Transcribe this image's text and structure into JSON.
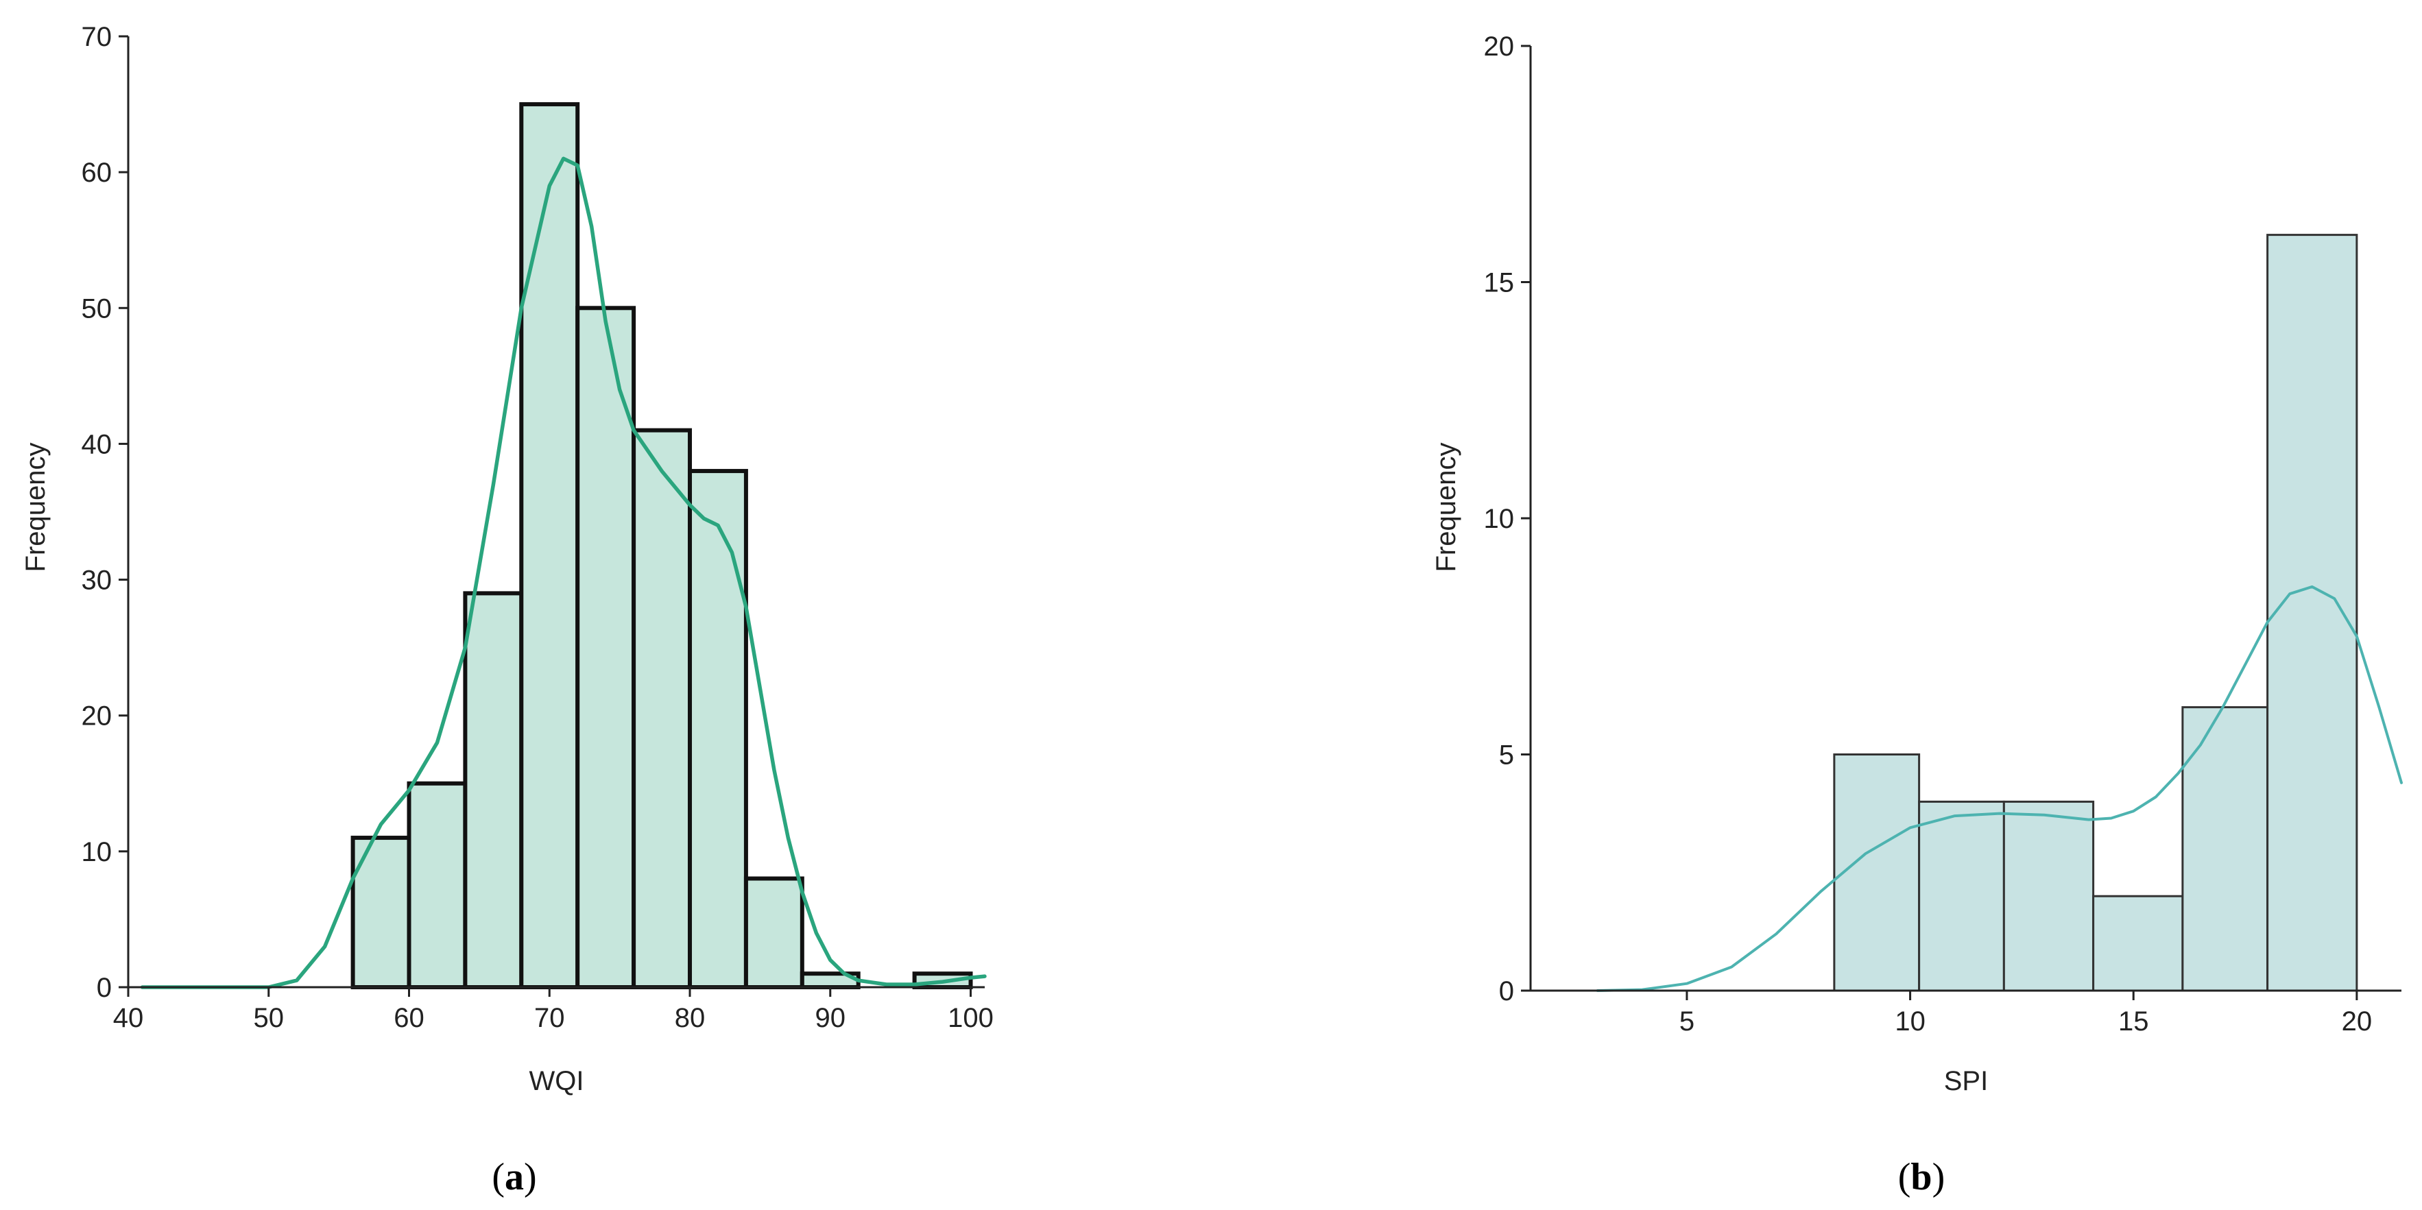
{
  "chart_data": [
    {
      "panel": "(a)",
      "panel_letter": "a",
      "type": "bar",
      "xlabel": "WQI",
      "ylabel": "Frequency",
      "xlim": [
        40,
        101
      ],
      "ylim": [
        0,
        70
      ],
      "xticks": [
        40,
        50,
        60,
        70,
        80,
        90,
        100
      ],
      "yticks": [
        0,
        10,
        20,
        30,
        40,
        50,
        60,
        70
      ],
      "bins": [
        {
          "x0": 56,
          "x1": 60,
          "count": 11
        },
        {
          "x0": 60,
          "x1": 64,
          "count": 15
        },
        {
          "x0": 64,
          "x1": 68,
          "count": 29
        },
        {
          "x0": 68,
          "x1": 72,
          "count": 65
        },
        {
          "x0": 72,
          "x1": 76,
          "count": 50
        },
        {
          "x0": 76,
          "x1": 80,
          "count": 41
        },
        {
          "x0": 80,
          "x1": 84,
          "count": 38
        },
        {
          "x0": 84,
          "x1": 88,
          "count": 8
        },
        {
          "x0": 88,
          "x1": 92,
          "count": 1
        },
        {
          "x0": 92,
          "x1": 96,
          "count": 0
        },
        {
          "x0": 96,
          "x1": 100,
          "count": 1
        }
      ],
      "kde": {
        "x": [
          41,
          50,
          52,
          54,
          56,
          58,
          60,
          62,
          64,
          66,
          68,
          70,
          71,
          72,
          73,
          74,
          75,
          76,
          78,
          80,
          81,
          82,
          83,
          84,
          85,
          86,
          87,
          88,
          89,
          90,
          91,
          92,
          94,
          96,
          98,
          100,
          101
        ],
        "y": [
          0,
          0,
          0.5,
          3,
          8,
          12,
          14.5,
          18,
          25,
          37,
          50,
          59,
          61,
          60.5,
          56,
          49,
          44,
          41,
          38,
          35.5,
          34.5,
          34,
          32,
          28,
          22,
          16,
          11,
          7,
          4,
          2,
          1,
          0.5,
          0.2,
          0.2,
          0.4,
          0.7,
          0.8
        ]
      },
      "colors": {
        "bar_fill": "#c6e6dc",
        "bar_edge": "#111111",
        "kde": "#2aa57e",
        "axis": "#222222"
      }
    },
    {
      "panel": "(b)",
      "panel_letter": "b",
      "type": "bar",
      "xlabel": "SPI",
      "ylabel": "Frequency",
      "xlim": [
        1.5,
        21
      ],
      "ylim": [
        0,
        20
      ],
      "xticks": [
        5,
        10,
        15,
        20
      ],
      "yticks": [
        0,
        5,
        10,
        15,
        20
      ],
      "bins": [
        {
          "x0": 8.3,
          "x1": 10.2,
          "count": 5
        },
        {
          "x0": 10.2,
          "x1": 12.1,
          "count": 4
        },
        {
          "x0": 12.1,
          "x1": 14.1,
          "count": 4
        },
        {
          "x0": 14.1,
          "x1": 16.1,
          "count": 2
        },
        {
          "x0": 16.1,
          "x1": 18.0,
          "count": 6
        },
        {
          "x0": 18.0,
          "x1": 20.0,
          "count": 16
        }
      ],
      "kde": {
        "x": [
          3,
          4,
          5,
          6,
          7,
          8,
          9,
          10,
          11,
          12,
          13,
          14,
          14.5,
          15,
          15.5,
          16,
          16.5,
          17,
          17.5,
          18,
          18.5,
          19,
          19.5,
          20,
          20.5,
          21
        ],
        "y": [
          0,
          0.02,
          0.15,
          0.5,
          1.2,
          2.1,
          2.9,
          3.45,
          3.7,
          3.75,
          3.72,
          3.62,
          3.65,
          3.8,
          4.1,
          4.6,
          5.2,
          6.0,
          6.9,
          7.8,
          8.4,
          8.55,
          8.3,
          7.5,
          6.0,
          4.4
        ]
      },
      "colors": {
        "bar_fill": "#c8e3e3",
        "bar_edge": "#333333",
        "kde": "#4db3b0",
        "axis": "#222222"
      }
    }
  ]
}
